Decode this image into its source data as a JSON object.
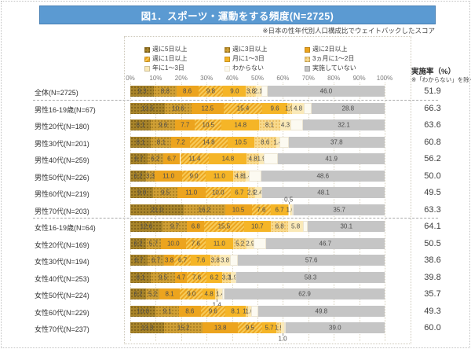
{
  "header": {
    "title": "図1．スポーツ・運動をする頻度(N=2725)",
    "weighting_note": "※日本の性年代別人口構成比でウェイトバックしたスコア"
  },
  "rate_column": {
    "header": "実施率（%）",
    "note": "※「わからない」を除く"
  },
  "chart_data": {
    "type": "bar",
    "orientation": "horizontal-stacked",
    "title": "図1．スポーツ・運動をする頻度(N=2725)",
    "x_ticks": [
      "0%",
      "10%",
      "20%",
      "30%",
      "40%",
      "50%",
      "60%",
      "70%",
      "80%",
      "90%",
      "100%"
    ],
    "xlim": [
      0,
      100
    ],
    "grid": "vertical-dotted",
    "legend_position": "top",
    "legend": [
      {
        "label": "週に5日以上",
        "color": "#a8842a"
      },
      {
        "label": "週に3日以上",
        "color": "#cf9f35"
      },
      {
        "label": "週に2日以上",
        "color": "#eca41e"
      },
      {
        "label": "週に1日以上",
        "color": "#f0b434"
      },
      {
        "label": "月に1～3日",
        "color": "#f5b527"
      },
      {
        "label": "3ヵ月に1～2日",
        "color": "#f8d98c"
      },
      {
        "label": "年に1～3日",
        "color": "#fae9b8"
      },
      {
        "label": "わからない",
        "color": "#fcfaf1"
      },
      {
        "label": "実施していない",
        "color": "#c5c5c5"
      }
    ],
    "legend_layout_columns": [
      [
        0,
        3,
        6
      ],
      [
        1,
        4,
        7
      ],
      [
        2,
        5,
        8
      ]
    ],
    "rows": [
      {
        "label": "全体(N=2725)",
        "values": [
          9.3,
          8.8,
          8.6,
          9.8,
          9.0,
          3.8,
          2.1,
          null,
          46.0
        ],
        "rate": 51.9,
        "callouts": {}
      },
      {
        "label": "男性16-19歳(N=67)",
        "values": [
          13.5,
          10.6,
          12.5,
          15.4,
          9.6,
          1.9,
          4.8,
          null,
          28.8
        ],
        "rate": 66.3,
        "callouts": {}
      },
      {
        "label": "男性20代(N=180)",
        "values": [
          8.1,
          9.6,
          7.7,
          10.5,
          14.8,
          8.1,
          4.3,
          null,
          32.1
        ],
        "rate": 63.6,
        "callouts": {}
      },
      {
        "label": "男性30代(N=201)",
        "values": [
          8.1,
          8.1,
          7.2,
          14.8,
          10.5,
          8.6,
          1.4,
          null,
          37.8
        ],
        "rate": 60.8,
        "callouts": {}
      },
      {
        "label": "男性40代(N=259)",
        "values": [
          6.7,
          6.2,
          6.7,
          11.4,
          14.8,
          4.8,
          1.9,
          null,
          41.9
        ],
        "rate": 56.2,
        "callouts": {}
      },
      {
        "label": "男性50代(N=226)",
        "values": [
          6.2,
          3.3,
          11.0,
          9.0,
          11.0,
          4.8,
          1.4,
          null,
          48.6
        ],
        "rate": 50.0,
        "callouts": {}
      },
      {
        "label": "男性60代(N=219)",
        "values": [
          9.0,
          9.5,
          11.0,
          10.0,
          6.7,
          2.9,
          2.4,
          null,
          48.1
        ],
        "rate": 49.5,
        "callouts": {}
      },
      {
        "label": "男性70代(N=203)",
        "values": [
          21.0,
          16.2,
          10.5,
          7.6,
          6.7,
          0.5,
          1.0,
          null,
          35.7
        ],
        "rate": 63.3,
        "callouts": {
          "5": "above"
        }
      },
      {
        "label": "女性16-19歳(N=64)",
        "values": [
          12.6,
          9.7,
          6.8,
          15.5,
          10.7,
          6.8,
          5.8,
          null,
          30.1
        ],
        "rate": 64.1,
        "callouts": {}
      },
      {
        "label": "女性20代(N=169)",
        "values": [
          6.2,
          5.7,
          10.0,
          7.6,
          11.0,
          5.2,
          2.9,
          null,
          46.7
        ],
        "rate": 50.5,
        "callouts": {}
      },
      {
        "label": "女性30代(N=194)",
        "values": [
          6.7,
          6.7,
          3.8,
          6.7,
          7.6,
          3.8,
          3.8,
          null,
          57.6
        ],
        "rate": 38.6,
        "callouts": {}
      },
      {
        "label": "女性40代(N=253)",
        "values": [
          8.1,
          9.5,
          4.7,
          7.6,
          6.2,
          3.3,
          1.9,
          null,
          58.3
        ],
        "rate": 39.8,
        "callouts": {}
      },
      {
        "label": "女性50代(N=224)",
        "values": [
          6.2,
          5.2,
          8.1,
          9.0,
          4.8,
          1.4,
          1.4,
          null,
          62.9
        ],
        "rate": 35.7,
        "callouts": {
          "5": "below"
        }
      },
      {
        "label": "女性60代(N=229)",
        "values": [
          10.0,
          9.1,
          8.6,
          9.6,
          8.1,
          1.0,
          1.0,
          null,
          49.8
        ],
        "rate": 49.3,
        "callouts": {}
      },
      {
        "label": "女性70代(N=237)",
        "values": [
          13.3,
          15.2,
          13.8,
          9.5,
          5.7,
          1.9,
          1.0,
          null,
          39.0
        ],
        "rate": 60.0,
        "callouts": {
          "6": "below"
        }
      }
    ],
    "group_separators_after_row": [
      0,
      7
    ]
  }
}
